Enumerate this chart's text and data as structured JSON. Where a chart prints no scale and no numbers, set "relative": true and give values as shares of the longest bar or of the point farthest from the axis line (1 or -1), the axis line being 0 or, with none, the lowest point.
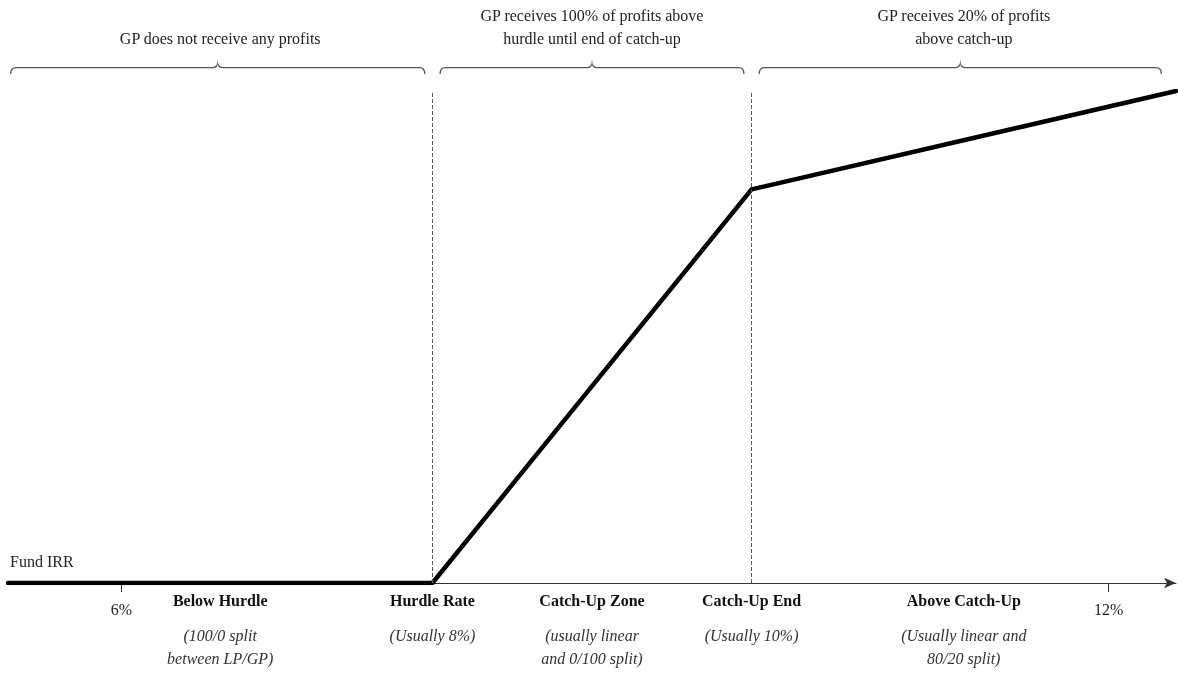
{
  "chart_data": {
    "type": "line",
    "relative": true,
    "xlabel": "Fund IRR",
    "color": "#000000",
    "marker": "none",
    "line_style": "solid",
    "x": [
      5.31,
      7.89,
      9.83,
      12.41
    ],
    "values": [
      0,
      0,
      0.8,
      1
    ],
    "xlim": [
      5.31,
      12.41
    ],
    "xticks": [
      {
        "value": 6,
        "label": "6%"
      },
      {
        "value": 12,
        "label": "12%"
      }
    ],
    "ref_lines": [
      {
        "axis": "x",
        "value": 7.89,
        "color": "#555555",
        "line_style": "dashed"
      },
      {
        "axis": "x",
        "value": 9.83,
        "color": "#555555",
        "line_style": "dashed"
      }
    ],
    "annotations": [
      "GP does not receive any profits",
      "GP receives 100% of profits above\nhurdle until end of catch-up",
      "GP receives 20% of profits\nabove catch-up",
      "Below Hurdle\n(100/0 split\nbetween LP/GP)",
      "Hurdle Rate\n(Usually 8%)",
      "Catch-Up Zone\n(usually linear\nand 0/100 split)",
      "Catch-Up End\n(Usually 10%)",
      "Above Catch-Up\n(Usually linear and\n80/20 split)"
    ]
  }
}
